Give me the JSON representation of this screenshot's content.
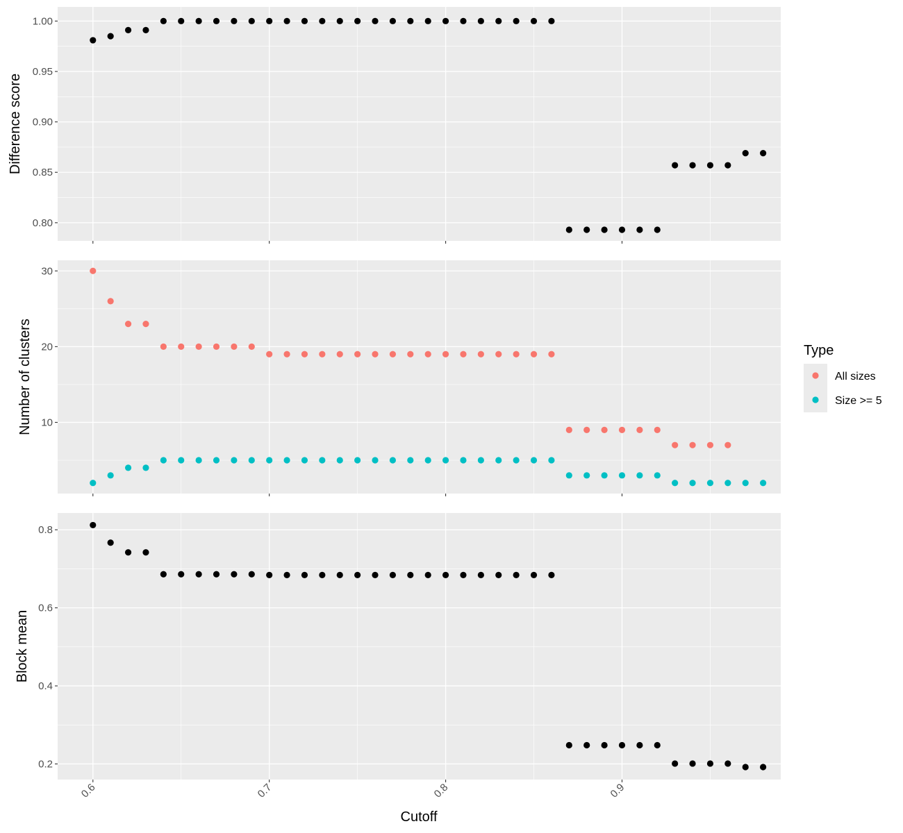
{
  "chart_data": {
    "type": "scatter",
    "x_label": "Cutoff",
    "x_range": [
      0.58,
      0.99
    ],
    "x_ticks": [
      0.6,
      0.7,
      0.8,
      0.9
    ],
    "x_tick_labels": [
      "0.6",
      "0.7",
      "0.8",
      "0.9"
    ],
    "x": [
      0.6,
      0.61,
      0.62,
      0.63,
      0.64,
      0.65,
      0.66,
      0.67,
      0.68,
      0.69,
      0.7,
      0.71,
      0.72,
      0.73,
      0.74,
      0.75,
      0.76,
      0.77,
      0.78,
      0.79,
      0.8,
      0.81,
      0.82,
      0.83,
      0.84,
      0.85,
      0.86,
      0.87,
      0.88,
      0.89,
      0.9,
      0.91,
      0.92,
      0.93,
      0.94,
      0.95,
      0.96,
      0.97,
      0.98
    ],
    "grid": true,
    "legend": {
      "title": "Type",
      "placement": "right",
      "entries": [
        {
          "label": "All sizes",
          "color": "#F8766D"
        },
        {
          "label": "Size >= 5",
          "color": "#00BFC4"
        }
      ]
    },
    "panels": [
      {
        "ylabel": "Difference score",
        "ylim": [
          0.782,
          1.014
        ],
        "y_ticks": [
          0.8,
          0.85,
          0.9,
          0.95,
          1.0
        ],
        "y_tick_labels": [
          "0.80",
          "0.85",
          "0.90",
          "0.95",
          "1.00"
        ],
        "series": [
          {
            "color": "#000000",
            "values": [
              0.981,
              0.985,
              0.991,
              0.991,
              1.0,
              1.0,
              1.0,
              1.0,
              1.0,
              1.0,
              1.0,
              1.0,
              1.0,
              1.0,
              1.0,
              1.0,
              1.0,
              1.0,
              1.0,
              1.0,
              1.0,
              1.0,
              1.0,
              1.0,
              1.0,
              1.0,
              1.0,
              0.793,
              0.793,
              0.793,
              0.793,
              0.793,
              0.793,
              0.857,
              0.857,
              0.857,
              0.857,
              0.869,
              0.869
            ]
          }
        ]
      },
      {
        "ylabel": "Number of clusters",
        "ylim": [
          0.6,
          31.4
        ],
        "y_ticks": [
          10,
          20,
          30
        ],
        "y_tick_labels": [
          "10",
          "20",
          "30"
        ],
        "series": [
          {
            "name": "All sizes",
            "color": "#F8766D",
            "values": [
              30,
              26,
              23,
              23,
              20,
              20,
              20,
              20,
              20,
              20,
              19,
              19,
              19,
              19,
              19,
              19,
              19,
              19,
              19,
              19,
              19,
              19,
              19,
              19,
              19,
              19,
              19,
              9,
              9,
              9,
              9,
              9,
              9,
              7,
              7,
              7,
              7,
              null,
              null
            ]
          },
          {
            "name": "Size >= 5",
            "color": "#00BFC4",
            "values": [
              2,
              3,
              4,
              4,
              5,
              5,
              5,
              5,
              5,
              5,
              5,
              5,
              5,
              5,
              5,
              5,
              5,
              5,
              5,
              5,
              5,
              5,
              5,
              5,
              5,
              5,
              5,
              3,
              3,
              3,
              3,
              3,
              3,
              2,
              2,
              2,
              2,
              2,
              2
            ]
          }
        ]
      },
      {
        "ylabel": "Block mean",
        "ylim": [
          0.16,
          0.843
        ],
        "y_ticks": [
          0.2,
          0.4,
          0.6,
          0.8
        ],
        "y_tick_labels": [
          "0.2",
          "0.4",
          "0.6",
          "0.8"
        ],
        "series": [
          {
            "color": "#000000",
            "values": [
              0.812,
              0.767,
              0.742,
              0.742,
              0.686,
              0.686,
              0.686,
              0.686,
              0.686,
              0.686,
              0.684,
              0.684,
              0.684,
              0.684,
              0.684,
              0.684,
              0.684,
              0.684,
              0.684,
              0.684,
              0.684,
              0.684,
              0.684,
              0.684,
              0.684,
              0.684,
              0.684,
              0.248,
              0.248,
              0.248,
              0.248,
              0.248,
              0.248,
              0.201,
              0.201,
              0.201,
              0.201,
              0.192,
              0.192
            ]
          }
        ]
      }
    ]
  }
}
